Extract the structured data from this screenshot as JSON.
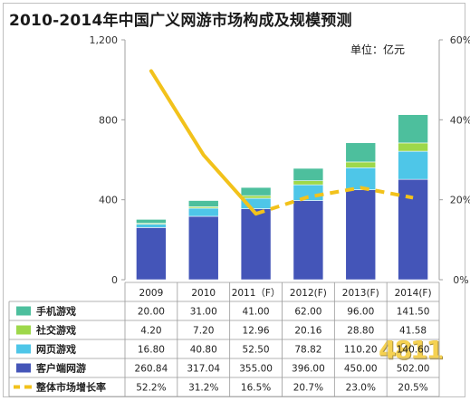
{
  "title": "2010-2014年中国广义网游市场构成及规模预测",
  "unit": "单位：亿元",
  "watermark": "4811",
  "chart_data": {
    "type": "bar",
    "stacked": true,
    "categories": [
      "2009",
      "2010",
      "2011（F）",
      "2012(F)",
      "2013(F)",
      "2014(F)"
    ],
    "series": [
      {
        "name": "手机游戏",
        "values": [
          20.0,
          31.0,
          41.0,
          62.0,
          96.0,
          141.5
        ],
        "color": "#4dbf9d",
        "display": [
          "20.00",
          "31.00",
          "41.00",
          "62.00",
          "96.00",
          "141.50"
        ]
      },
      {
        "name": "社交游戏",
        "values": [
          4.2,
          7.2,
          12.96,
          20.16,
          28.8,
          41.58
        ],
        "color": "#9ed84a",
        "display": [
          "4.20",
          "7.20",
          "12.96",
          "20.16",
          "28.80",
          "41.58"
        ]
      },
      {
        "name": "网页游戏",
        "values": [
          16.8,
          40.8,
          52.5,
          78.82,
          110.2,
          140.6
        ],
        "color": "#4ec6e8",
        "display": [
          "16.80",
          "40.80",
          "52.50",
          "78.82",
          "110.20",
          "140.60"
        ]
      },
      {
        "name": "客户端网游",
        "values": [
          260.84,
          317.04,
          355.0,
          396.0,
          450.0,
          502.0
        ],
        "color": "#4455b8",
        "display": [
          "260.84",
          "317.04",
          "355.00",
          "396.00",
          "450.00",
          "502.00"
        ]
      }
    ],
    "line": {
      "name": "整体市场增长率",
      "values": [
        52.2,
        31.2,
        16.5,
        20.7,
        23.0,
        20.5
      ],
      "color": "#f2c21b",
      "display": [
        "52.2%",
        "31.2%",
        "16.5%",
        "20.7%",
        "23.0%",
        "20.5%"
      ]
    },
    "y_left": {
      "ticks": [
        "0",
        "400",
        "800",
        "1,200"
      ],
      "tick_values": [
        0,
        400,
        800,
        1200
      ],
      "ylim": [
        0,
        1200
      ]
    },
    "y_right": {
      "ticks": [
        "0%",
        "20%",
        "40%",
        "60%"
      ],
      "tick_values": [
        0,
        20,
        40,
        60
      ],
      "ylim": [
        0,
        60
      ]
    },
    "legend": "data-table"
  }
}
